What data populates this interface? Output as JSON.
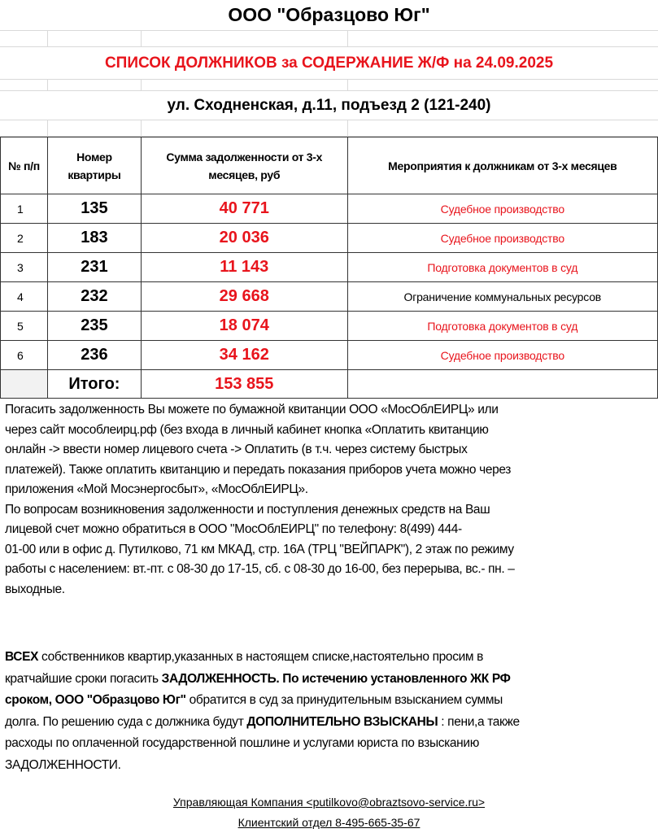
{
  "title": "ООО \"Образцово Юг\"",
  "subtitle": "СПИСОК ДОЛЖНИКОВ за СОДЕРЖАНИЕ Ж/Ф  на 24.09.2025",
  "address": "ул. Сходненская, д.11, подъезд 2 (121-240)",
  "colors": {
    "accent_red": "#e8141c"
  },
  "table": {
    "headers": [
      "№ п/п",
      "Номер квартиры",
      "Сумма  задолженности от  3-х месяцев, руб",
      "Мероприятия к должникам от 3-х месяцев"
    ],
    "rows": [
      {
        "n": "1",
        "apt": "135",
        "sum": "40 771",
        "action": "Судебное производство",
        "action_red": true
      },
      {
        "n": "2",
        "apt": "183",
        "sum": "20 036",
        "action": "Судебное производство",
        "action_red": true
      },
      {
        "n": "3",
        "apt": "231",
        "sum": "11 143",
        "action": "Подготовка  документов   в суд",
        "action_red": true
      },
      {
        "n": "4",
        "apt": "232",
        "sum": "29 668",
        "action": "Ограничение  коммунальных  ресурсов",
        "action_red": false
      },
      {
        "n": "5",
        "apt": "235",
        "sum": "18 074",
        "action": "Подготовка  документов   в суд",
        "action_red": true
      },
      {
        "n": "6",
        "apt": "236",
        "sum": "34 162",
        "action": "Судебное производство",
        "action_red": true
      }
    ],
    "total_label": "Итого:",
    "total_value": "153 855"
  },
  "info_lines": [
    " Погасить задолженность Вы можете по бумажной квитанции ООО «МосОблЕИРЦ» или",
    "через сайт мособлеирц.рф (без входа в личный кабинет кнопка «Оплатить квитанцию",
    "онлайн -> ввести номер лицевого счета -> Оплатить (в т.ч. через систему быстрых",
    "платежей). Также оплатить квитанцию и передать показания приборов учета можно через",
    "приложения «Мой Мосэнергосбыт», «МосОблЕИРЦ».",
    "По вопросам  возникновения задолженности и поступления денежных средств на Ваш",
    "лицевой счет можно обратиться в  ООО \"МосОблЕИРЦ\" по телефону:               8(499) 444-",
    "01-00 или в офис д. Путилково, 71 км МКАД,  стр. 16А (ТРЦ \"ВЕЙПАРК\"), 2 этаж по режиму",
    "работы с населением: вт.-пт. с 08-30 до 17-15, сб. с 08-30 до 16-00, без перерыва, вс.- пн. –",
    "выходные."
  ],
  "notice": {
    "l1b": "ВСЕХ",
    "l1": " собственников квартир,указанных в настоящем списке,настоятельно просим в",
    "l2": "кратчайшие сроки погасить ",
    "l2b": "ЗАДОЛЖЕННОСТЬ.  По истечению установленного ЖК РФ",
    "l3b": "сроком, ООО \"Образцово Юг\"",
    "l3": " обратится в суд за принудительным взысканием суммы",
    "l4": "долга. По решению суда с должника будут ",
    "l4b": "ДОПОЛНИТЕЛЬНО ВЗЫСКАНЫ",
    "l4c": " : пени,а также",
    "l5": "расходы по оплаченной государственной пошлине и услугами юриста по взысканию",
    "l6": "ЗАДОЛЖЕННОСТИ."
  },
  "footer": {
    "company": "Управляющая Компания <putilkovo@obraztsovo-service.ru>",
    "client": "Клиентский  отдел  8-495-665-35-67"
  }
}
